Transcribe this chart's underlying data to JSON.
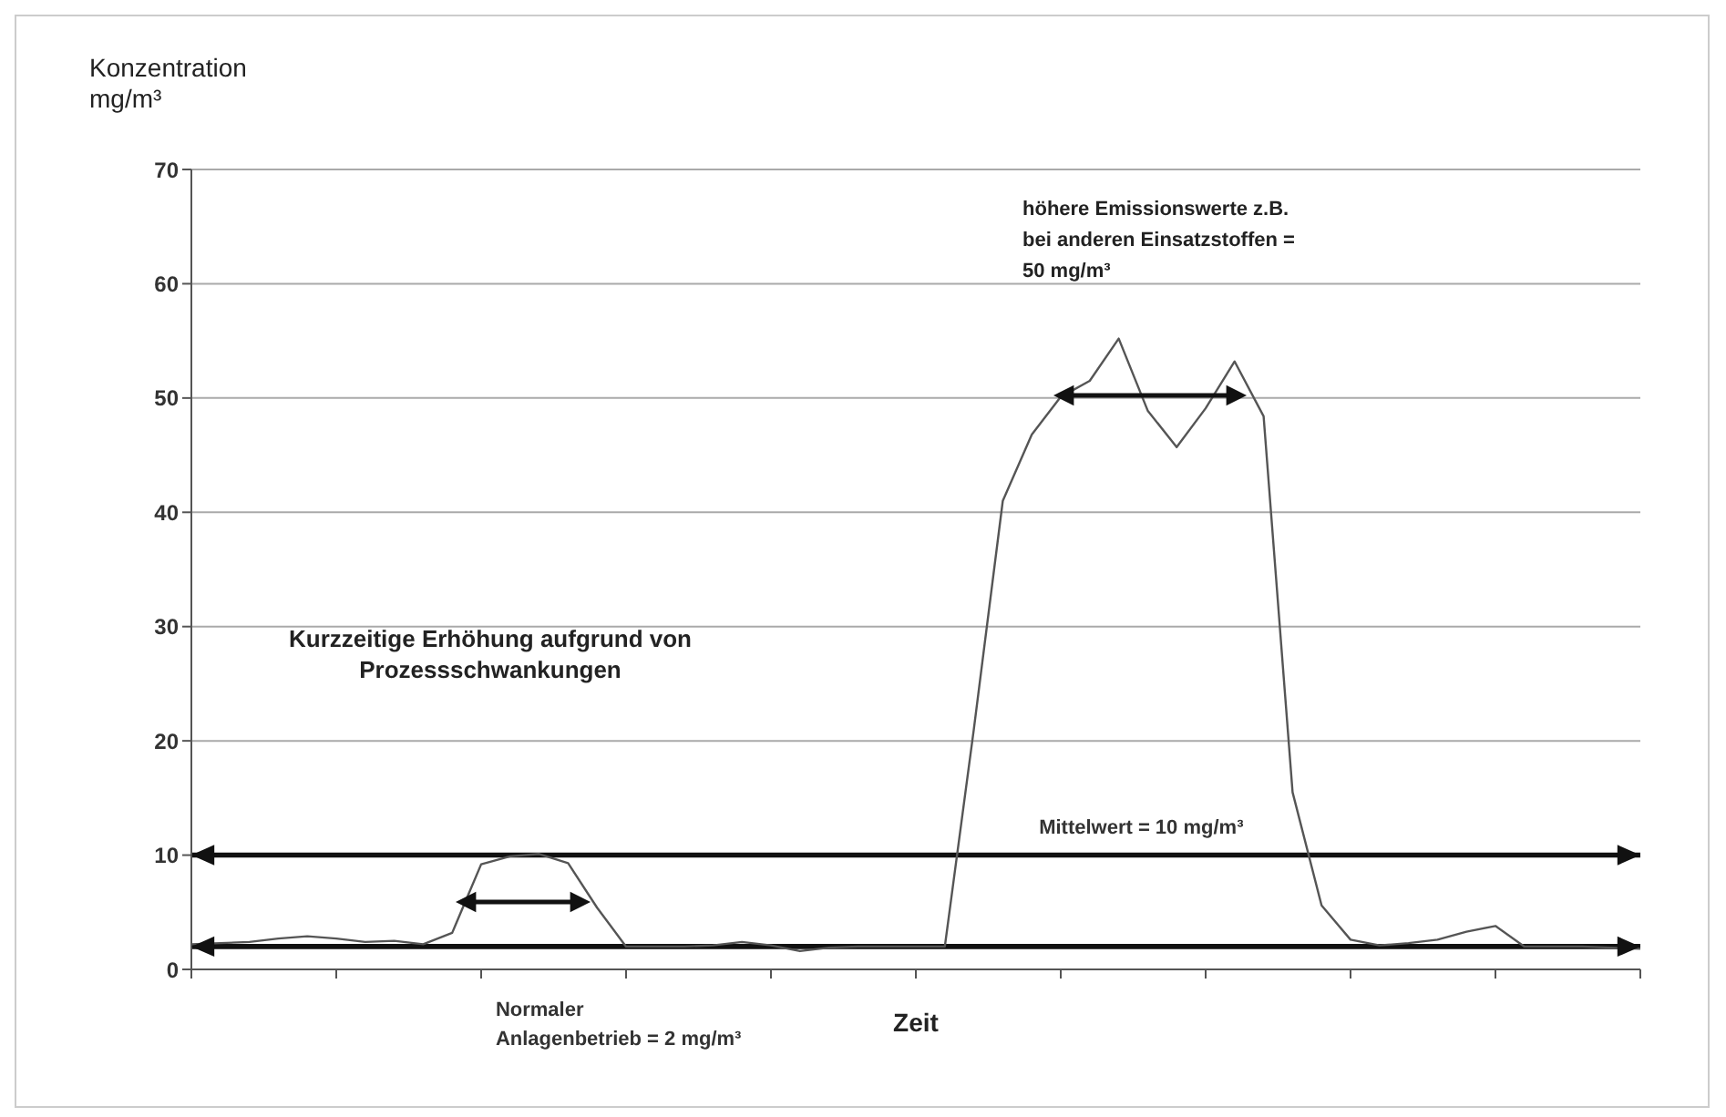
{
  "chart_data": {
    "type": "line",
    "xlabel": "Zeit",
    "ylabel": "Konzentration mg/m³",
    "categories": [
      null,
      null,
      null,
      null,
      null,
      null,
      null,
      null,
      null,
      null,
      null,
      null,
      null,
      null,
      null,
      null,
      null,
      null,
      null,
      null,
      null,
      null,
      null,
      null,
      null,
      null,
      null,
      null,
      null,
      null,
      null,
      null,
      null,
      null,
      null,
      null,
      null,
      null,
      null,
      null,
      null,
      null,
      null,
      null,
      null,
      null,
      null,
      null,
      null,
      null,
      null
    ],
    "series": [
      {
        "color": "#555555",
        "values": [
          2.2,
          2.3,
          2.4,
          2.7,
          2.9,
          2.7,
          2.4,
          2.5,
          2.2,
          3.2,
          9.2,
          9.9,
          10.1,
          9.3,
          5.4,
          2,
          2,
          2,
          2.1,
          2.4,
          2.1,
          1.6,
          1.9,
          2,
          2,
          2,
          2,
          21,
          41,
          46.8,
          50.1,
          51.5,
          55.2,
          48.9,
          45.7,
          49.1,
          53.2,
          48.4,
          15.5,
          5.6,
          2.6,
          2.1,
          2.3,
          2.6,
          3.3,
          3.8,
          2,
          2,
          2,
          1.9,
          1.8
        ]
      }
    ],
    "ylim": [
      0,
      70
    ],
    "yticks": [
      0,
      10,
      20,
      30,
      40,
      50,
      60,
      70
    ],
    "tick_labels": "y",
    "grid": "y",
    "marker": "none",
    "line_style": "solid",
    "ref_lines": [
      {
        "axis": "y",
        "value": 10,
        "label": "Mittelwert = 10 mg/m³",
        "color": "#111111"
      },
      {
        "axis": "y",
        "value": 2,
        "label": "Normaler Anlagenbetrieb = 2 mg/m³",
        "color": "#111111"
      }
    ],
    "annotations": [
      "Kurzzeitige Erhöhung aufgrund von Prozessschwankungen",
      "höhere Emissionswerte z.B. bei anderen Einsatzstoffen = 50 mg/m³"
    ]
  }
}
